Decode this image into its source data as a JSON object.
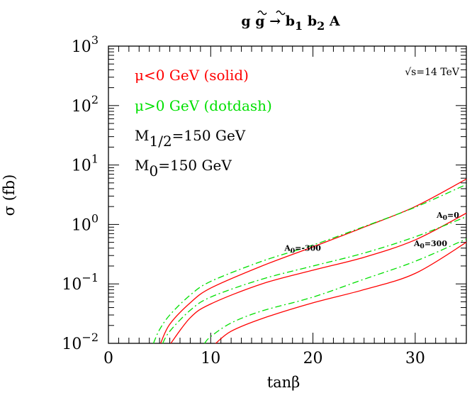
{
  "chart_data": {
    "type": "line",
    "title": {
      "parts": [
        "g",
        "g",
        "→",
        "b",
        "1",
        "b",
        "2",
        "A"
      ],
      "tilde_on": [
        3,
        5
      ]
    },
    "xlabel": "tanβ",
    "ylabel": "σ (fb)",
    "xlim": [
      0,
      35
    ],
    "ylim": [
      0.01,
      1000
    ],
    "yscale": "log",
    "x_ticks": [
      "0",
      "10",
      "20",
      "30"
    ],
    "x_tick_values": [
      0,
      10,
      20,
      30
    ],
    "y_ticks": [
      {
        "value": 1000,
        "base": "10",
        "exp": "3"
      },
      {
        "value": 100,
        "base": "10",
        "exp": "2"
      },
      {
        "value": 10,
        "base": "10",
        "exp": "1"
      },
      {
        "value": 1,
        "base": "10",
        "exp": "0"
      },
      {
        "value": 0.1,
        "base": "10",
        "exp": "−1"
      },
      {
        "value": 0.01,
        "base": "10",
        "exp": "−2"
      }
    ],
    "legend": {
      "neg": "μ<0 GeV (solid)",
      "pos": "μ>0 GeV (dotdash)",
      "m12_main": "M",
      "m12_sub": "1/2",
      "m12_rest": "=150 GeV",
      "m0_main": "M",
      "m0_sub": "0",
      "m0_rest": "=150 GeV"
    },
    "energy_label": "√s=14 TeV",
    "annotations": [
      {
        "base": "A",
        "sub": "0",
        "rest": "=-300",
        "x": 19,
        "y": 0.36
      },
      {
        "base": "A",
        "sub": "0",
        "rest": "=0",
        "x": 33.2,
        "y": 1.3
      },
      {
        "base": "A",
        "sub": "0",
        "rest": "=300",
        "x": 31.5,
        "y": 0.43
      }
    ],
    "colors": {
      "neg": "#ff0000",
      "pos": "#00e000",
      "axis": "#000000"
    },
    "series": [
      {
        "group": "A0=-300",
        "style": "solid",
        "color": "#ff0000",
        "x": [
          5.1,
          6,
          8,
          10,
          15,
          20,
          25,
          30,
          35
        ],
        "y": [
          0.01,
          0.021,
          0.048,
          0.085,
          0.2,
          0.42,
          0.9,
          2.0,
          5.8
        ]
      },
      {
        "group": "A0=-300",
        "style": "dotdash",
        "color": "#00e000",
        "x": [
          4.4,
          5,
          6,
          8,
          10,
          15,
          20,
          25,
          30,
          35
        ],
        "y": [
          0.01,
          0.017,
          0.03,
          0.065,
          0.11,
          0.24,
          0.45,
          0.92,
          1.95,
          4.7
        ]
      },
      {
        "group": "A0=0",
        "style": "solid",
        "color": "#ff0000",
        "x": [
          6.1,
          8,
          10,
          15,
          20,
          25,
          30,
          35
        ],
        "y": [
          0.01,
          0.027,
          0.046,
          0.1,
          0.17,
          0.28,
          0.55,
          1.55
        ]
      },
      {
        "group": "A0=0",
        "style": "dotdash",
        "color": "#00e000",
        "x": [
          5.3,
          6,
          8,
          10,
          15,
          20,
          25,
          30,
          35
        ],
        "y": [
          0.01,
          0.016,
          0.036,
          0.06,
          0.12,
          0.2,
          0.33,
          0.62,
          1.35
        ]
      },
      {
        "group": "A0=300",
        "style": "solid",
        "color": "#ff0000",
        "x": [
          10.5,
          12,
          15,
          20,
          25,
          30,
          35
        ],
        "y": [
          0.01,
          0.016,
          0.026,
          0.048,
          0.08,
          0.15,
          0.5
        ]
      },
      {
        "group": "A0=300",
        "style": "dotdash",
        "color": "#00e000",
        "x": [
          9.4,
          10,
          12,
          15,
          20,
          25,
          30,
          35
        ],
        "y": [
          0.01,
          0.013,
          0.022,
          0.035,
          0.06,
          0.12,
          0.24,
          0.57
        ]
      }
    ]
  }
}
